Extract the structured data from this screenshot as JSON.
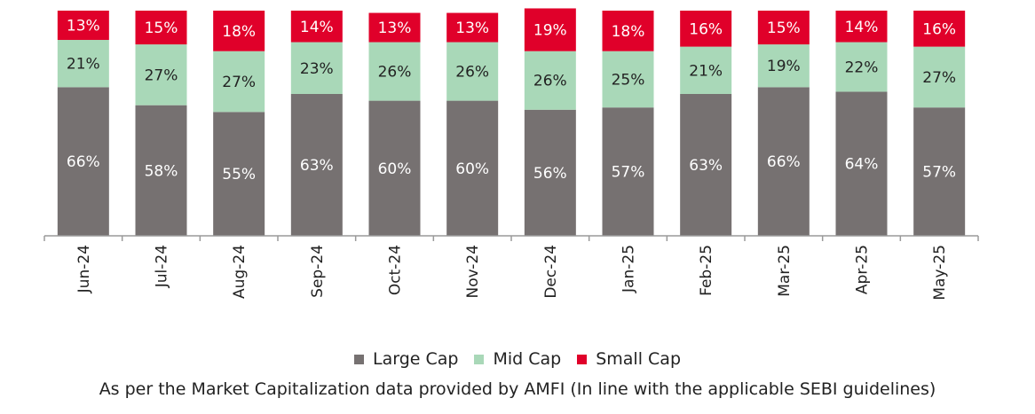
{
  "chart_data": {
    "type": "bar",
    "stacked": true,
    "percent": true,
    "categories": [
      "Jun-24",
      "Jul-24",
      "Aug-24",
      "Sep-24",
      "Oct-24",
      "Nov-24",
      "Dec-24",
      "Jan-25",
      "Feb-25",
      "Mar-25",
      "Apr-25",
      "May-25"
    ],
    "series": [
      {
        "name": "Large Cap",
        "color": "#767171",
        "values": [
          66,
          58,
          55,
          63,
          60,
          60,
          56,
          57,
          63,
          66,
          64,
          57
        ]
      },
      {
        "name": "Mid Cap",
        "color": "#a9d8b8",
        "values": [
          21,
          27,
          27,
          23,
          26,
          26,
          26,
          25,
          21,
          19,
          22,
          27
        ]
      },
      {
        "name": "Small Cap",
        "color": "#e0002a",
        "values": [
          13,
          15,
          18,
          14,
          13,
          13,
          19,
          18,
          16,
          15,
          14,
          16
        ]
      }
    ],
    "ylim": [
      0,
      100
    ],
    "legend": "bottom",
    "grid": false
  },
  "footnote": "As per the Market Capitalization data provided by AMFI (In line with the applicable SEBI guidelines)"
}
